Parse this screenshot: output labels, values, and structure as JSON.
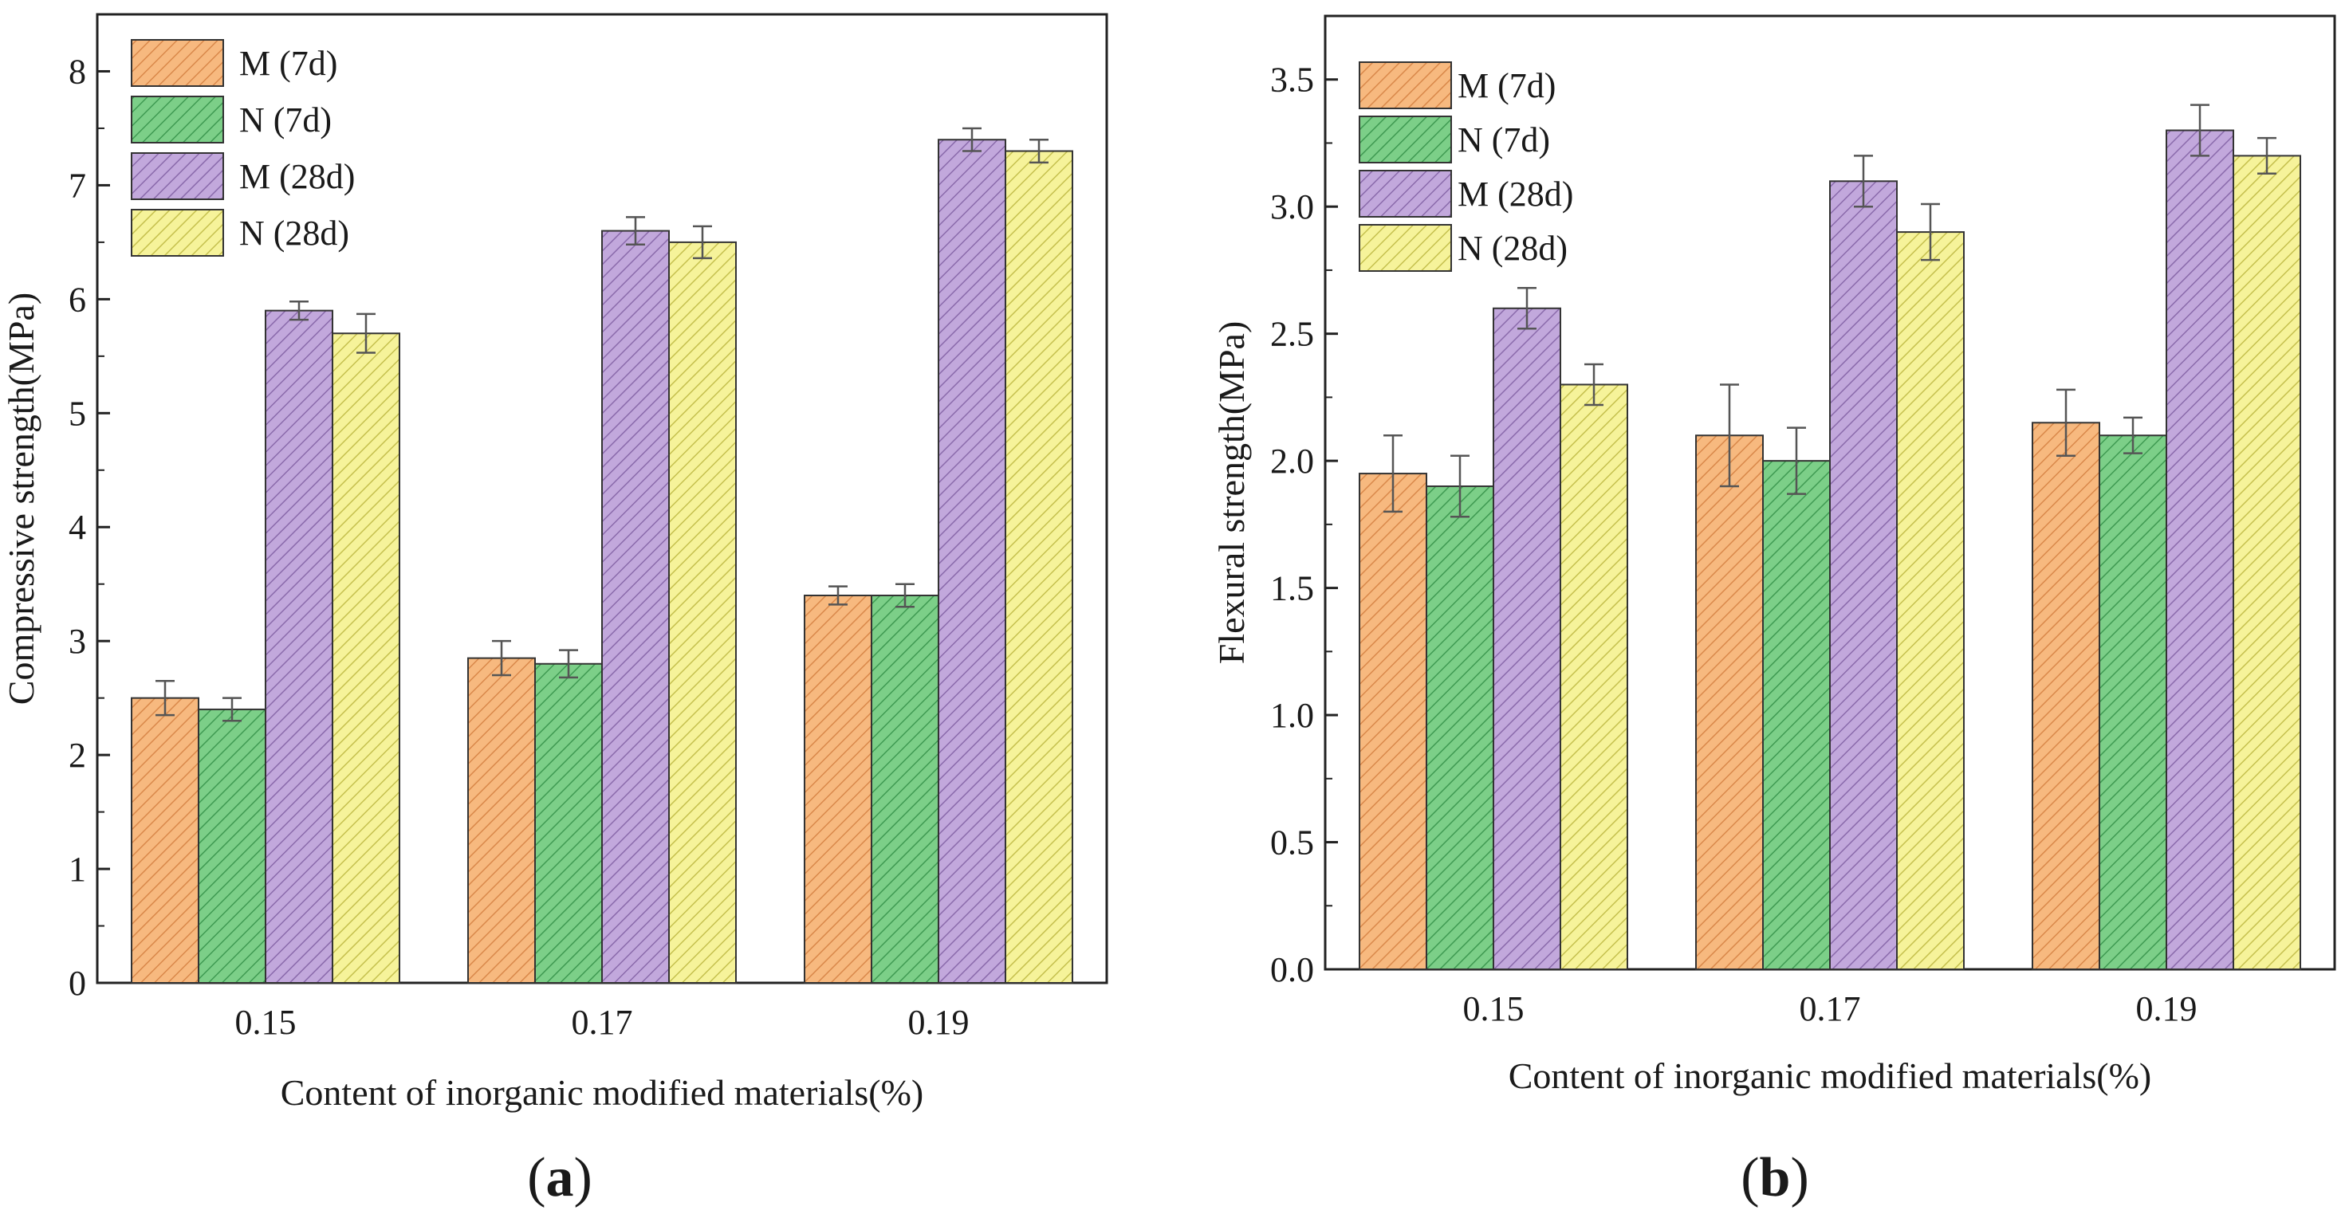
{
  "chart_data": [
    {
      "type": "bar",
      "panel_label": "a",
      "title": "",
      "xlabel": "Content of inorganic modified materials(%)",
      "ylabel": "Compressive strength(MPa)",
      "categories": [
        "0.15",
        "0.17",
        "0.19"
      ],
      "ylim": [
        0,
        8.5
      ],
      "yticks": [
        "0",
        "1",
        "2",
        "3",
        "4",
        "5",
        "6",
        "7",
        "8"
      ],
      "grid": false,
      "legend_position": "top-left",
      "series": [
        {
          "name": "M (7d)",
          "values": [
            2.5,
            2.85,
            3.4
          ],
          "errors": [
            0.15,
            0.15,
            0.08
          ],
          "color": "#f7b97f",
          "hatch": "#d9884a"
        },
        {
          "name": "N (7d)",
          "values": [
            2.4,
            2.8,
            3.4
          ],
          "errors": [
            0.1,
            0.12,
            0.1
          ],
          "color": "#7ccf88",
          "hatch": "#3f9a52"
        },
        {
          "name": "M (28d)",
          "values": [
            5.9,
            6.6,
            7.4
          ],
          "errors": [
            0.08,
            0.12,
            0.1
          ],
          "color": "#c2a8dc",
          "hatch": "#8a6aab"
        },
        {
          "name": "N (28d)",
          "values": [
            5.7,
            6.5,
            7.3
          ],
          "errors": [
            0.17,
            0.14,
            0.1
          ],
          "color": "#f6f39a",
          "hatch": "#c5c04e"
        }
      ]
    },
    {
      "type": "bar",
      "panel_label": "b",
      "title": "",
      "xlabel": "Content of inorganic modified materials(%)",
      "ylabel": "Flexural strength(MPa)",
      "categories": [
        "0.15",
        "0.17",
        "0.19"
      ],
      "ylim": [
        0,
        3.75
      ],
      "yticks": [
        "0.0",
        "0.5",
        "1.0",
        "1.5",
        "2.0",
        "2.5",
        "3.0",
        "3.5"
      ],
      "grid": false,
      "legend_position": "top-left",
      "series": [
        {
          "name": "M (7d)",
          "values": [
            1.95,
            2.1,
            2.15
          ],
          "errors": [
            0.15,
            0.2,
            0.13
          ],
          "color": "#f7b97f",
          "hatch": "#d9884a"
        },
        {
          "name": "N (7d)",
          "values": [
            1.9,
            2.0,
            2.1
          ],
          "errors": [
            0.12,
            0.13,
            0.07
          ],
          "color": "#7ccf88",
          "hatch": "#3f9a52"
        },
        {
          "name": "M (28d)",
          "values": [
            2.6,
            3.1,
            3.3
          ],
          "errors": [
            0.08,
            0.1,
            0.1
          ],
          "color": "#c2a8dc",
          "hatch": "#8a6aab"
        },
        {
          "name": "N (28d)",
          "values": [
            2.3,
            2.9,
            3.2
          ],
          "errors": [
            0.08,
            0.11,
            0.07
          ],
          "color": "#f6f39a",
          "hatch": "#c5c04e"
        }
      ]
    }
  ]
}
